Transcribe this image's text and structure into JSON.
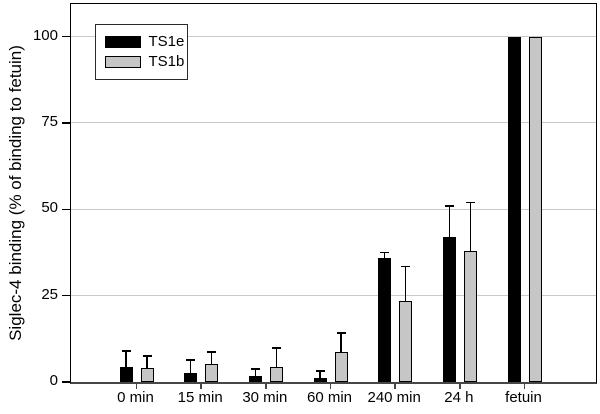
{
  "chart_data": {
    "type": "bar",
    "title": "",
    "xlabel": "",
    "ylabel": "Siglec-4 binding (% of binding to fetuin)",
    "categories": [
      "0 min",
      "15 min",
      "30 min",
      "60 min",
      "240 min",
      "24 h",
      "fetuin"
    ],
    "series": [
      {
        "name": "TS1e",
        "color": "#000000",
        "values": [
          4.3,
          2.5,
          1.8,
          1.3,
          36,
          42,
          100
        ],
        "errors_up": [
          4.7,
          3.9,
          2.0,
          1.9,
          1.5,
          9,
          0
        ]
      },
      {
        "name": "TS1b",
        "color": "#c6c6c6",
        "values": [
          4.1,
          5.1,
          4.3,
          8.8,
          23.5,
          38,
          100
        ],
        "errors_up": [
          3.4,
          3.6,
          5.6,
          5.4,
          10,
          14,
          0
        ]
      }
    ],
    "yticks": [
      0,
      25,
      50,
      75,
      100
    ],
    "ylim": [
      0,
      109
    ],
    "grid": "horizontal",
    "legend_position": "top-left-inside",
    "colors": {
      "gridline": "#c9c9c9",
      "axis": "#000000",
      "baseline": "#474747",
      "error_bar": "#000000",
      "background": "#ffffff"
    }
  }
}
